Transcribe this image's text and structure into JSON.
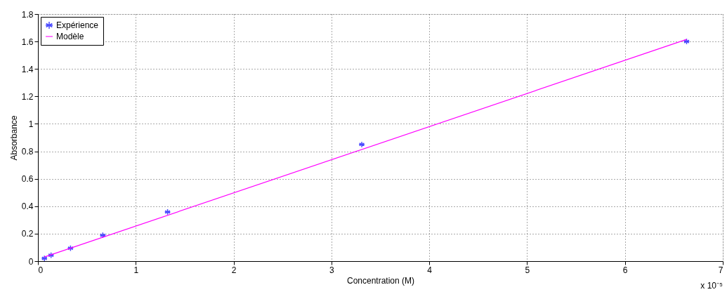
{
  "chart_data": {
    "type": "scatter",
    "xlabel": "Concentration (M)",
    "ylabel": "Absorbance",
    "annotations": [
      "x 10⁻⁵"
    ],
    "xlim": [
      0,
      7
    ],
    "xticks": [
      0,
      1,
      2,
      3,
      4,
      5,
      6,
      7
    ],
    "ylim": [
      0,
      1.8
    ],
    "yticks": [
      0,
      0.2,
      0.4,
      0.6,
      0.8,
      1,
      1.2,
      1.4,
      1.6,
      1.8
    ],
    "grid": true,
    "legend": "top left",
    "series": [
      {
        "name": "Expérience",
        "marker": "cross",
        "color": "#0000ff",
        "x": [
          0.066,
          0.134,
          0.333,
          0.663,
          1.325,
          3.31,
          6.63
        ],
        "values": [
          0.02,
          0.043,
          0.094,
          0.188,
          0.358,
          0.85,
          1.6
        ]
      },
      {
        "name": "Modèle",
        "type": "line",
        "line_style": "solid",
        "color": "#ff00ff",
        "x": [
          0.066,
          6.63
        ],
        "values": [
          0.03,
          1.615
        ]
      }
    ]
  }
}
